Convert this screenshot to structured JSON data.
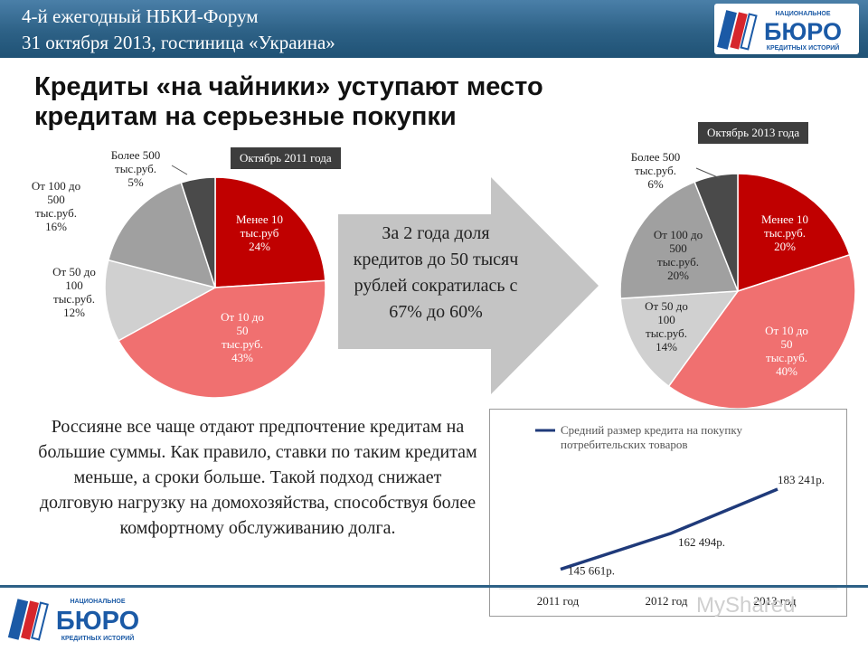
{
  "header": {
    "line1": "4-й ежегодный НБКИ-Форум",
    "line2": "31 октября 2013, гостиница «Украина»"
  },
  "logo": {
    "line1": "НАЦИОНАЛЬНОЕ",
    "main": "БЮРО",
    "line2": "КРЕДИТНЫХ ИСТОРИЙ"
  },
  "title": "Кредиты «на чайники» уступают место кредитам на серьезные покупки",
  "arrow_text": "За 2 года доля кредитов до 50 тысяч рублей сократилась с 67% до 60%",
  "paragraph": "Россияне все чаще отдают предпочтение кредитам на большие суммы. Как правило, ставки по таким кредитам меньше, а сроки больше. Такой подход снижает долговую нагрузку на домохозяйства, способствуя более комфортному обслуживанию долга.",
  "watermark": "MyShared",
  "colors": {
    "header_bar": "#2d6186",
    "slice_under10": "#c00000",
    "slice_10_50": "#f07070",
    "slice_50_100": "#d0d0d0",
    "slice_100_500": "#a0a0a0",
    "slice_over500": "#4a4a4a",
    "line": "#1f3a7a",
    "logo_blue": "#1b5aa6",
    "logo_red": "#d6262c"
  },
  "chart_data": [
    {
      "type": "pie",
      "title": "Октябрь 2011 года",
      "slices": [
        {
          "label": "Менее 10 тыс.руб",
          "label_lines": [
            "Менее 10",
            "тыс.руб",
            "24%"
          ],
          "value": 24
        },
        {
          "label": "От 10 до 50 тыс.руб.",
          "label_lines": [
            "От 10 до",
            "50",
            "тыс.руб.",
            "43%"
          ],
          "value": 43
        },
        {
          "label": "От 50 до 100 тыс.руб.",
          "label_lines": [
            "От 50 до",
            "100",
            "тыс.руб.",
            "12%"
          ],
          "value": 12
        },
        {
          "label": "От 100 до 500 тыс.руб.",
          "label_lines": [
            "От 100 до",
            "500",
            "тыс.руб.",
            "16%"
          ],
          "value": 16
        },
        {
          "label": "Более 500 тыс.руб.",
          "label_lines": [
            "Более 500",
            "тыс.руб.",
            "5%"
          ],
          "value": 5
        }
      ]
    },
    {
      "type": "pie",
      "title": "Октябрь 2013 года",
      "slices": [
        {
          "label": "Менее 10 тыс.руб.",
          "label_lines": [
            "Менее 10",
            "тыс.руб.",
            "20%"
          ],
          "value": 20
        },
        {
          "label": "От 10 до 50 тыс.руб.",
          "label_lines": [
            "От 10 до",
            "50",
            "тыс.руб.",
            "40%"
          ],
          "value": 40
        },
        {
          "label": "От 50 до 100 тыс.руб.",
          "label_lines": [
            "От 50 до",
            "100",
            "тыс.руб.",
            "14%"
          ],
          "value": 14
        },
        {
          "label": "От 100 до 500 тыс.руб.",
          "label_lines": [
            "От 100 до",
            "500",
            "тыс.руб.",
            "20%"
          ],
          "value": 20
        },
        {
          "label": "Более 500 тыс.руб.",
          "label_lines": [
            "Более 500",
            "тыс.руб.",
            "6%"
          ],
          "value": 6
        }
      ]
    },
    {
      "type": "line",
      "series": [
        {
          "name": "Средний размер кредита на покупку потребительских товаров",
          "name_lines": [
            "Средний размер кредита на покупку",
            "потребительских товаров"
          ],
          "values": [
            145661,
            162494,
            183241
          ],
          "data_labels": [
            "145 661р.",
            "162 494р.",
            "183 241р."
          ]
        }
      ],
      "categories": [
        "2011 год",
        "2012 год",
        "2013 год"
      ],
      "legend": "top-left",
      "grid": false
    }
  ]
}
